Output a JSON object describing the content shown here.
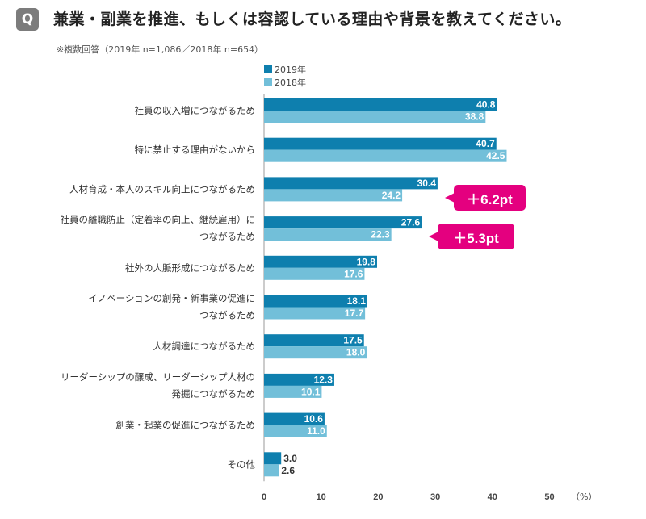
{
  "header": {
    "q_label": "Q",
    "title": "兼業・副業を推進、もしくは容認している理由や背景を教えてください。",
    "note": "※複数回答（2019年 n=1,086／2018年 n=654）"
  },
  "colors": {
    "y2019": "#0e7fae",
    "y2018": "#72bfd9",
    "accent": "#e4007f"
  },
  "chart_data": {
    "type": "bar",
    "orientation": "horizontal",
    "title": "兼業・副業を推進、もしくは容認している理由や背景を教えてください。",
    "xlabel": "（%）",
    "xlim": [
      0,
      50
    ],
    "xticks": [
      "0",
      "10",
      "20",
      "30",
      "40",
      "50"
    ],
    "categories": [
      [
        "社員の収入増につながるため"
      ],
      [
        "特に禁止する理由がないから"
      ],
      [
        "人材育成・本人のスキル向上につながるため"
      ],
      [
        "社員の離職防止（定着率の向上、継続雇用）に",
        "つながるため"
      ],
      [
        "社外の人脈形成につながるため"
      ],
      [
        "イノベーションの創発・新事業の促進に",
        "つながるため"
      ],
      [
        "人材調達につながるため"
      ],
      [
        "リーダーシップの醸成、リーダーシップ人材の",
        "発掘につながるため"
      ],
      [
        "創業・起業の促進につながるため"
      ],
      [
        "その他"
      ]
    ],
    "series": [
      {
        "name": "2019年",
        "values": [
          "40.8",
          "40.7",
          "30.4",
          "27.6",
          "19.8",
          "18.1",
          "17.5",
          "12.3",
          "10.6",
          "3.0"
        ]
      },
      {
        "name": "2018年",
        "values": [
          "38.8",
          "42.5",
          "24.2",
          "22.3",
          "17.6",
          "17.7",
          "18.0",
          "10.1",
          "11.0",
          "2.6"
        ]
      }
    ],
    "legend_position": "top-left",
    "annotations": [
      {
        "category_index": 2,
        "text": "＋6.2pt"
      },
      {
        "category_index": 3,
        "text": "＋5.3pt"
      }
    ]
  }
}
